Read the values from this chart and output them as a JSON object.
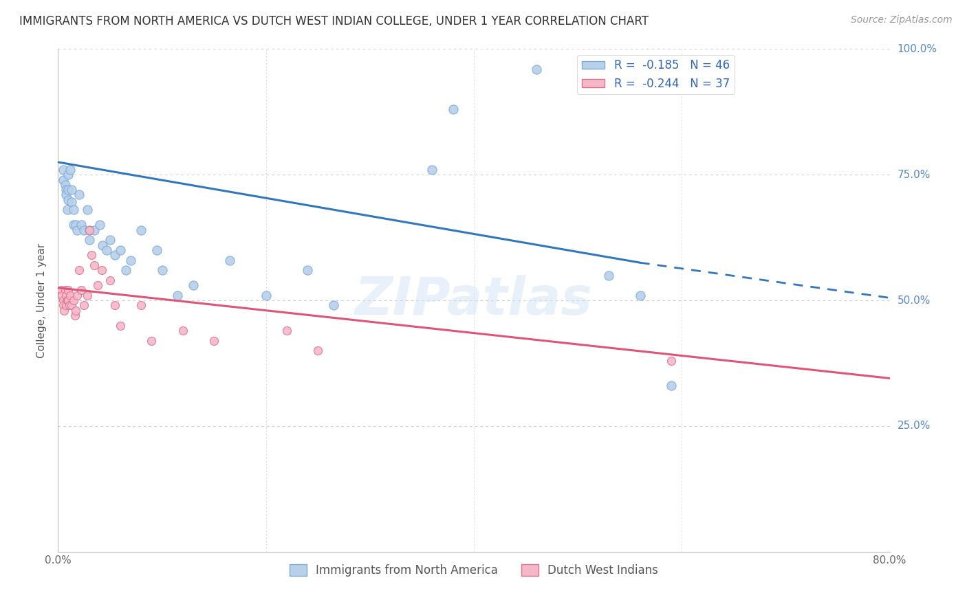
{
  "title": "IMMIGRANTS FROM NORTH AMERICA VS DUTCH WEST INDIAN COLLEGE, UNDER 1 YEAR CORRELATION CHART",
  "source": "Source: ZipAtlas.com",
  "ylabel": "College, Under 1 year",
  "yaxis_labels_right": [
    "100.0%",
    "75.0%",
    "50.0%",
    "25.0%"
  ],
  "legend_blue_r": "-0.185",
  "legend_blue_n": "46",
  "legend_pink_r": "-0.244",
  "legend_pink_n": "37",
  "legend_label_blue": "Immigrants from North America",
  "legend_label_pink": "Dutch West Indians",
  "blue_color": "#b8d0e8",
  "pink_color": "#f5b8c8",
  "blue_edge": "#7aaadd",
  "pink_edge": "#e07090",
  "trend_blue": "#3377bb",
  "trend_pink": "#dd5577",
  "background": "#ffffff",
  "grid_color": "#cccccc",
  "title_color": "#333333",
  "right_axis_color": "#5588cc",
  "watermark": "ZIPatlas",
  "xlim": [
    0.0,
    0.8
  ],
  "ylim": [
    0.0,
    1.0
  ],
  "blue_x": [
    0.005,
    0.005,
    0.007,
    0.008,
    0.008,
    0.009,
    0.01,
    0.01,
    0.01,
    0.012,
    0.013,
    0.013,
    0.015,
    0.015,
    0.017,
    0.018,
    0.02,
    0.022,
    0.025,
    0.028,
    0.03,
    0.03,
    0.035,
    0.04,
    0.043,
    0.047,
    0.05,
    0.055,
    0.06,
    0.065,
    0.07,
    0.08,
    0.095,
    0.1,
    0.115,
    0.13,
    0.165,
    0.2,
    0.24,
    0.265,
    0.36,
    0.38,
    0.46,
    0.53,
    0.56,
    0.59
  ],
  "blue_y": [
    0.76,
    0.74,
    0.73,
    0.72,
    0.71,
    0.68,
    0.75,
    0.72,
    0.7,
    0.76,
    0.72,
    0.695,
    0.68,
    0.65,
    0.65,
    0.64,
    0.71,
    0.65,
    0.64,
    0.68,
    0.64,
    0.62,
    0.64,
    0.65,
    0.61,
    0.6,
    0.62,
    0.59,
    0.6,
    0.56,
    0.58,
    0.64,
    0.6,
    0.56,
    0.51,
    0.53,
    0.58,
    0.51,
    0.56,
    0.49,
    0.76,
    0.88,
    0.96,
    0.55,
    0.51,
    0.33
  ],
  "pink_x": [
    0.003,
    0.004,
    0.005,
    0.005,
    0.006,
    0.007,
    0.008,
    0.008,
    0.009,
    0.01,
    0.01,
    0.011,
    0.012,
    0.013,
    0.015,
    0.016,
    0.017,
    0.018,
    0.02,
    0.022,
    0.025,
    0.028,
    0.03,
    0.032,
    0.035,
    0.038,
    0.042,
    0.05,
    0.055,
    0.06,
    0.08,
    0.09,
    0.12,
    0.15,
    0.22,
    0.25,
    0.59
  ],
  "pink_y": [
    0.52,
    0.51,
    0.5,
    0.49,
    0.48,
    0.52,
    0.51,
    0.49,
    0.5,
    0.52,
    0.5,
    0.49,
    0.51,
    0.49,
    0.5,
    0.47,
    0.48,
    0.51,
    0.56,
    0.52,
    0.49,
    0.51,
    0.64,
    0.59,
    0.57,
    0.53,
    0.56,
    0.54,
    0.49,
    0.45,
    0.49,
    0.42,
    0.44,
    0.42,
    0.44,
    0.4,
    0.38
  ],
  "marker_size_blue": 90,
  "marker_size_pink": 75,
  "blue_trend_x_start": 0.0,
  "blue_trend_x_solid_end": 0.56,
  "blue_trend_x_dashed_end": 0.8,
  "blue_trend_y_start": 0.775,
  "blue_trend_y_at_solid_end": 0.575,
  "blue_trend_y_at_dashed_end": 0.505,
  "pink_trend_x_start": 0.0,
  "pink_trend_x_end": 0.8,
  "pink_trend_y_start": 0.525,
  "pink_trend_y_end": 0.345
}
